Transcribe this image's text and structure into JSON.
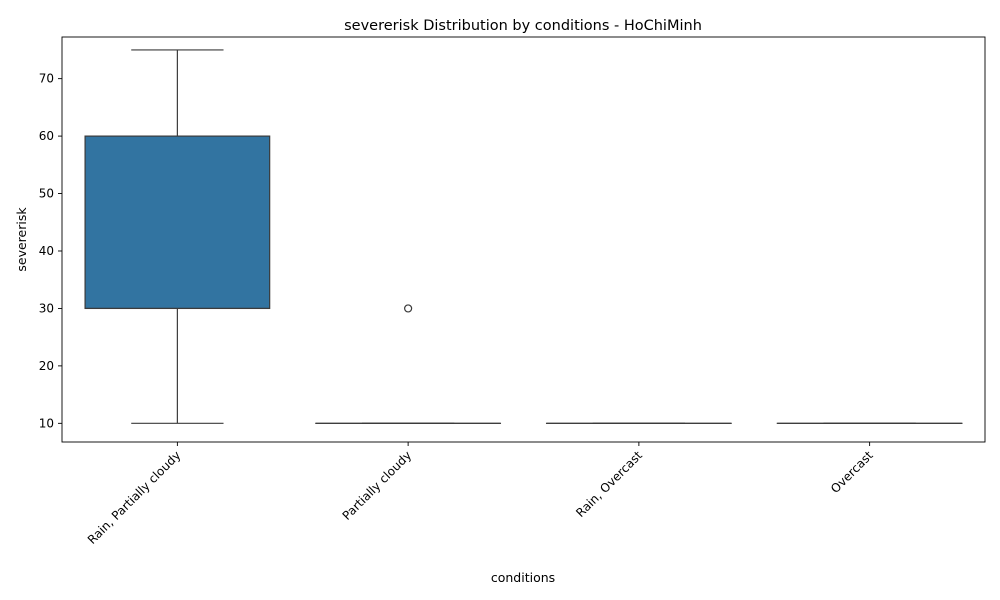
{
  "chart_data": {
    "type": "box",
    "title": "severerisk Distribution by conditions - HoChiMinh",
    "xlabel": "conditions",
    "ylabel": "severerisk",
    "ylim": [
      6.75,
      77.25
    ],
    "yticks": [
      10,
      20,
      30,
      40,
      50,
      60,
      70
    ],
    "grid": false,
    "box_color": "#3274a1",
    "categories": [
      "Rain, Partially cloudy",
      "Partially cloudy",
      "Rain, Overcast",
      "Overcast"
    ],
    "boxes": [
      {
        "category": "Rain, Partially cloudy",
        "whisker_low": 10,
        "q1": 30,
        "median": 30,
        "q3": 60,
        "whisker_high": 75,
        "outliers": []
      },
      {
        "category": "Partially cloudy",
        "whisker_low": 10,
        "q1": 10,
        "median": 10,
        "q3": 10,
        "whisker_high": 10,
        "outliers": [
          30
        ]
      },
      {
        "category": "Rain, Overcast",
        "whisker_low": 10,
        "q1": 10,
        "median": 10,
        "q3": 10,
        "whisker_high": 10,
        "outliers": []
      },
      {
        "category": "Overcast",
        "whisker_low": 10,
        "q1": 10,
        "median": 10,
        "q3": 10,
        "whisker_high": 10,
        "outliers": []
      }
    ]
  }
}
